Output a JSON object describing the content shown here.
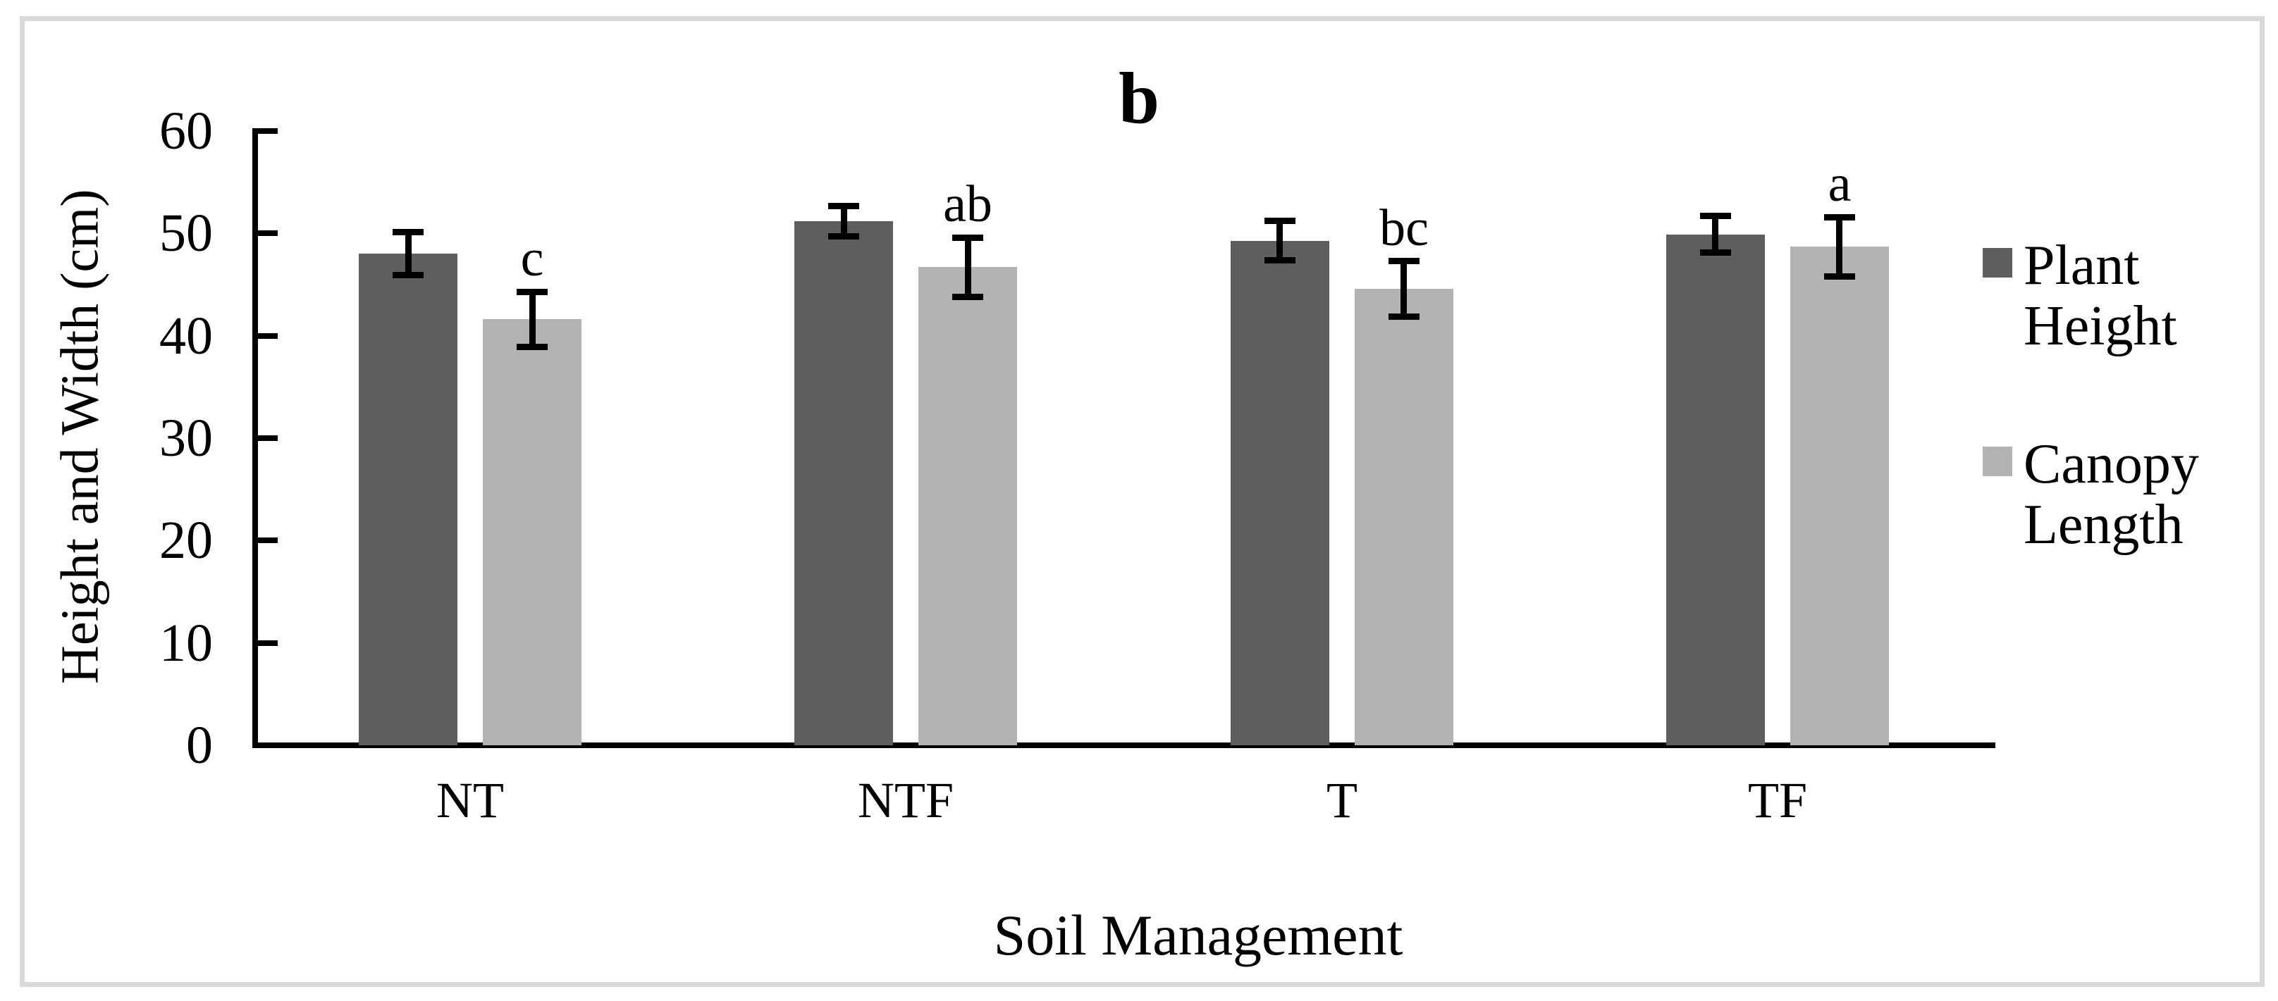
{
  "figure": {
    "background": "#FFFFFF",
    "border_color": "#D9D9D9"
  },
  "chart_data": {
    "type": "bar",
    "title": "b",
    "xlabel": "Soil Management",
    "ylabel": "Height and Width (cm)",
    "ylim": [
      0,
      60
    ],
    "yticks": [
      0,
      10,
      20,
      30,
      40,
      50,
      60
    ],
    "categories": [
      "NT",
      "NTF",
      "T",
      "TF"
    ],
    "series": [
      {
        "name": "Plant Height",
        "color": "#5E5E5E",
        "values": [
          48.0,
          51.2,
          49.3,
          49.9
        ],
        "errors": [
          2.1,
          1.5,
          1.9,
          1.8
        ],
        "sig_letters": [
          "",
          "",
          "",
          ""
        ]
      },
      {
        "name": "Canopy Length",
        "color": "#B3B3B3",
        "values": [
          41.6,
          46.7,
          44.6,
          48.7
        ],
        "errors": [
          2.7,
          2.9,
          2.7,
          2.9
        ],
        "sig_letters": [
          "c",
          "ab",
          "bc",
          "a"
        ]
      }
    ],
    "legend_position": "right",
    "grid": false,
    "axis_color": "#000000",
    "error_bar_color": "#000000"
  }
}
